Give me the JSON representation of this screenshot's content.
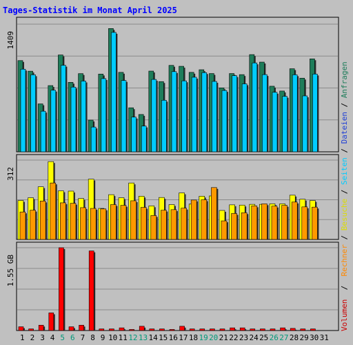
{
  "chart_data": [
    {
      "type": "bar",
      "title": "Tages-Statistik im Monat April 2025",
      "xlabel": "",
      "ylabel": "1409",
      "ylim": [
        0,
        1409
      ],
      "grid": true,
      "categories": [
        "1",
        "2",
        "3",
        "4",
        "5",
        "6",
        "7",
        "8",
        "9",
        "10",
        "11",
        "12",
        "13",
        "14",
        "15",
        "16",
        "17",
        "18",
        "19",
        "20",
        "21",
        "22",
        "23",
        "24",
        "25",
        "26",
        "27",
        "28",
        "29",
        "30"
      ],
      "weekend_days": [
        "5",
        "6",
        "12",
        "13",
        "19",
        "20",
        "26",
        "27"
      ],
      "series": [
        {
          "name": "Anfragen",
          "color": "#1e7d5a",
          "values": [
            1007,
            890,
            529,
            731,
            1069,
            767,
            863,
            350,
            858,
            1361,
            877,
            486,
            412,
            891,
            775,
            954,
            944,
            877,
            906,
            864,
            706,
            864,
            852,
            1073,
            990,
            724,
            671,
            917,
            813,
            1026
          ]
        },
        {
          "name": "Dateien",
          "color": "#1f3fd6",
          "values": [
            0,
            0,
            0,
            0,
            0,
            0,
            0,
            0,
            0,
            0,
            0,
            0,
            0,
            0,
            0,
            0,
            0,
            0,
            0,
            0,
            0,
            0,
            0,
            0,
            0,
            0,
            0,
            0,
            0,
            0
          ]
        },
        {
          "name": "Seiten",
          "color": "#00ccff",
          "values": [
            912,
            850,
            448,
            680,
            955,
            714,
            781,
            273,
            808,
            1318,
            787,
            383,
            284,
            799,
            569,
            885,
            783,
            823,
            874,
            777,
            677,
            840,
            750,
            981,
            852,
            657,
            612,
            850,
            617,
            858
          ]
        }
      ]
    },
    {
      "type": "bar",
      "ylabel": "312",
      "ylim": [
        0,
        312
      ],
      "grid": true,
      "categories": [
        "1",
        "2",
        "3",
        "4",
        "5",
        "6",
        "7",
        "8",
        "9",
        "10",
        "11",
        "12",
        "13",
        "14",
        "15",
        "16",
        "17",
        "18",
        "19",
        "20",
        "21",
        "22",
        "23",
        "24",
        "25",
        "26",
        "27",
        "28",
        "29",
        "30"
      ],
      "series": [
        {
          "name": "Besuche",
          "color": "#ffff00",
          "values": [
            153,
            164,
            207,
            306,
            191,
            190,
            161,
            237,
            122,
            176,
            164,
            222,
            170,
            132,
            165,
            137,
            183,
            139,
            170,
            171,
            114,
            136,
            135,
            138,
            138,
            140,
            140,
            174,
            158,
            153
          ]
        },
        {
          "name": "Rechner",
          "color": "#ff9900",
          "values": [
            108,
            115,
            151,
            222,
            144,
            142,
            125,
            122,
            120,
            137,
            134,
            152,
            126,
            94,
            115,
            117,
            123,
            155,
            156,
            204,
            73,
            102,
            105,
            132,
            140,
            131,
            134,
            147,
            128,
            127
          ]
        }
      ]
    },
    {
      "type": "bar",
      "ylabel": "1.55 GB",
      "ylim": [
        0,
        1.55
      ],
      "grid": true,
      "categories": [
        "1",
        "2",
        "3",
        "4",
        "5",
        "6",
        "7",
        "8",
        "9",
        "10",
        "11",
        "12",
        "13",
        "14",
        "15",
        "16",
        "17",
        "18",
        "19",
        "20",
        "21",
        "22",
        "23",
        "24",
        "25",
        "26",
        "27",
        "28",
        "29",
        "30",
        "31"
      ],
      "series": [
        {
          "name": "Volumen",
          "color": "#ff0000",
          "values": [
            0.07,
            0.03,
            0.1,
            0.33,
            1.55,
            0.07,
            0.1,
            1.49,
            0.03,
            0.03,
            0.05,
            0.02,
            0.08,
            0.03,
            0.03,
            0.02,
            0.08,
            0.03,
            0.03,
            0.03,
            0.03,
            0.05,
            0.05,
            0.03,
            0.03,
            0.03,
            0.05,
            0.04,
            0.03,
            0.03,
            0
          ]
        }
      ]
    }
  ],
  "legend": {
    "volumen": "Volumen",
    "rechner": "Rechner",
    "besuche": "Besuche",
    "seiten": "Seiten",
    "dateien": "Dateien",
    "anfragen": "Anfragen",
    "separator": "/",
    "colors": {
      "volumen": "#cc0000",
      "rechner": "#ff8800",
      "besuche": "#dddd00",
      "seiten": "#00ccff",
      "dateien": "#1f3fd6",
      "anfragen": "#1e7d5a"
    }
  },
  "colors": {
    "background": "#c0c0c0",
    "plot_background": "#c0c0c0",
    "title": "#0000ff",
    "weekday_label": "#000000",
    "weekend_label": "#00997a"
  }
}
